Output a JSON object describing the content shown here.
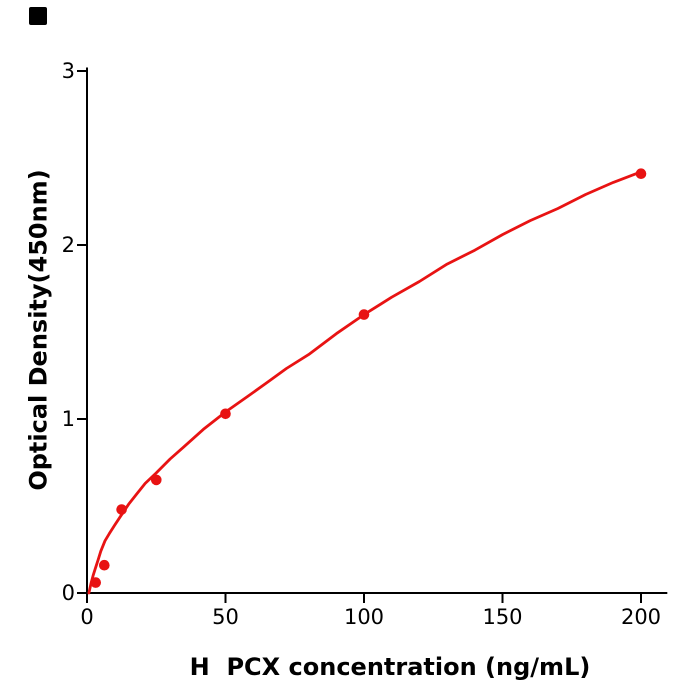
{
  "figure": {
    "background": "#ffffff",
    "corner_marker_color": "#000000"
  },
  "chart_data": {
    "type": "scatter",
    "title": "",
    "xlabel": "H  PCX concentration (ng/mL)",
    "ylabel": "Optical Density(450nm)",
    "points": {
      "x": [
        3.125,
        6.25,
        12.5,
        25,
        50,
        100,
        200
      ],
      "y": [
        0.06,
        0.16,
        0.48,
        0.65,
        1.03,
        1.6,
        2.41
      ]
    },
    "fit_curve": {
      "x": [
        0.7,
        1.5,
        2.2,
        3,
        4,
        5,
        6.5,
        8,
        10,
        12.5,
        15,
        18,
        21,
        25,
        30,
        35,
        42,
        50,
        58,
        65,
        72,
        80,
        90,
        100,
        110,
        120,
        130,
        140,
        150,
        160,
        170,
        180,
        190,
        200
      ],
      "y": [
        0.0,
        0.06,
        0.1,
        0.14,
        0.19,
        0.24,
        0.3,
        0.34,
        0.39,
        0.45,
        0.51,
        0.57,
        0.63,
        0.69,
        0.77,
        0.84,
        0.94,
        1.04,
        1.13,
        1.21,
        1.29,
        1.37,
        1.49,
        1.6,
        1.7,
        1.79,
        1.89,
        1.97,
        2.06,
        2.14,
        2.21,
        2.29,
        2.36,
        2.42
      ]
    },
    "xticks": [
      0,
      50,
      100,
      150,
      200
    ],
    "yticks": [
      0,
      1,
      2,
      3
    ],
    "xlim": [
      0,
      209.5
    ],
    "ylim": [
      0,
      3.02
    ],
    "grid": false,
    "legend": "none",
    "point_color": "#e81313",
    "line_color": "#e81313",
    "axis_color": "#000000",
    "text_color": "#000000"
  }
}
